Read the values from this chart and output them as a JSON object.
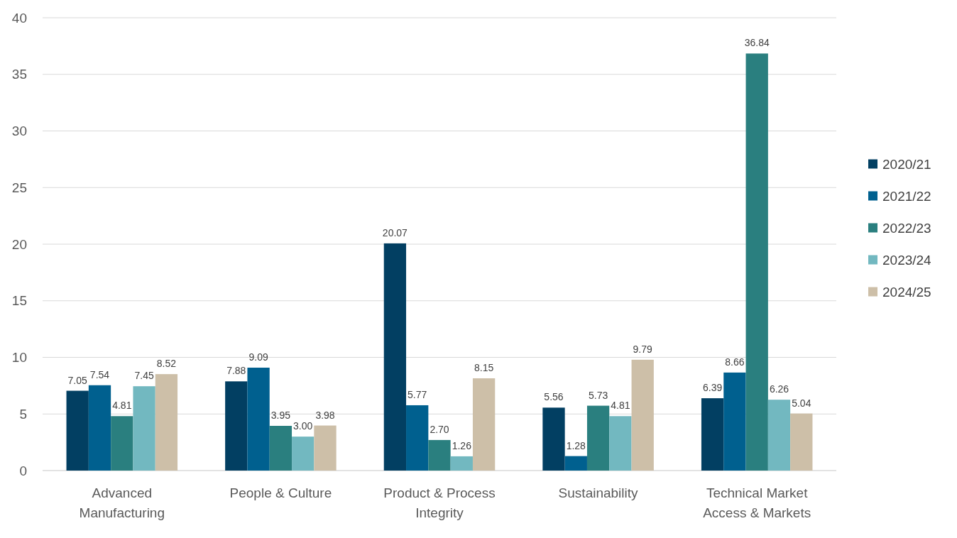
{
  "chart_data": {
    "type": "bar",
    "categories": [
      "Advanced Manufacturing",
      "People & Culture",
      "Product & Process Integrity",
      "Sustainability",
      "Technical Market Access & Markets"
    ],
    "series": [
      {
        "name": "2020/21",
        "color": "#023f62",
        "values": [
          7.05,
          7.88,
          20.07,
          5.56,
          6.39
        ],
        "value_labels": [
          "7.05",
          "7.88",
          "20.07",
          "5.56",
          "6.39"
        ]
      },
      {
        "name": "2021/22",
        "color": "#00608f",
        "values": [
          7.54,
          9.09,
          5.77,
          1.28,
          8.66
        ],
        "value_labels": [
          "7.54",
          "9.09",
          "5.77",
          "1.28",
          "8.66"
        ]
      },
      {
        "name": "2022/23",
        "color": "#2a7f7f",
        "values": [
          4.81,
          3.95,
          2.7,
          5.73,
          36.84
        ],
        "value_labels": [
          "4.81",
          "3.95",
          "2.70",
          "5.73",
          "36.84"
        ]
      },
      {
        "name": "2023/24",
        "color": "#72b8c0",
        "values": [
          7.45,
          3.0,
          1.26,
          4.81,
          6.26
        ],
        "value_labels": [
          "7.45",
          "3.00",
          "1.26",
          "4.81",
          "6.26"
        ]
      },
      {
        "name": "2024/25",
        "color": "#cdbfa8",
        "values": [
          8.52,
          3.98,
          8.15,
          9.79,
          5.04
        ],
        "value_labels": [
          "8.52",
          "3.98",
          "8.15",
          "9.79",
          "5.04"
        ]
      }
    ],
    "ylim": [
      0,
      40
    ],
    "yticks": [
      0,
      5,
      10,
      15,
      20,
      25,
      30,
      35,
      40
    ],
    "grid": "y",
    "legend": "right"
  }
}
